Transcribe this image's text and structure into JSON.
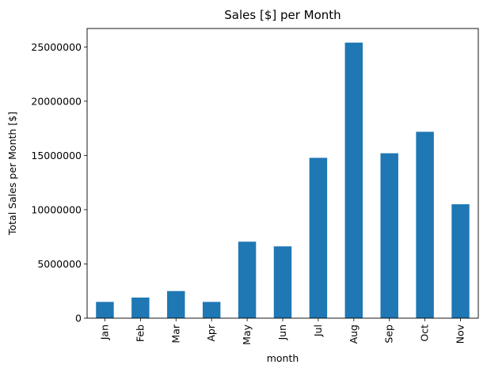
{
  "chart_data": {
    "type": "bar",
    "title": "Sales [$] per Month",
    "xlabel": "month",
    "ylabel": "Total Sales per Month [$]",
    "categories": [
      "Jan",
      "Feb",
      "Mar",
      "Apr",
      "May",
      "Jun",
      "Jul",
      "Aug",
      "Sep",
      "Oct",
      "Nov"
    ],
    "values": [
      1500000,
      1900000,
      2500000,
      1500000,
      7050000,
      6620000,
      14780000,
      25400000,
      15200000,
      17180000,
      10500000
    ],
    "ylim": [
      0,
      26700000
    ],
    "yticks": [
      0,
      5000000,
      10000000,
      15000000,
      20000000,
      25000000
    ],
    "ytick_labels": [
      "0",
      "5000000",
      "10000000",
      "15000000",
      "20000000",
      "25000000"
    ],
    "bar_color": "#1f77b4",
    "grid": false,
    "legend": "none"
  }
}
